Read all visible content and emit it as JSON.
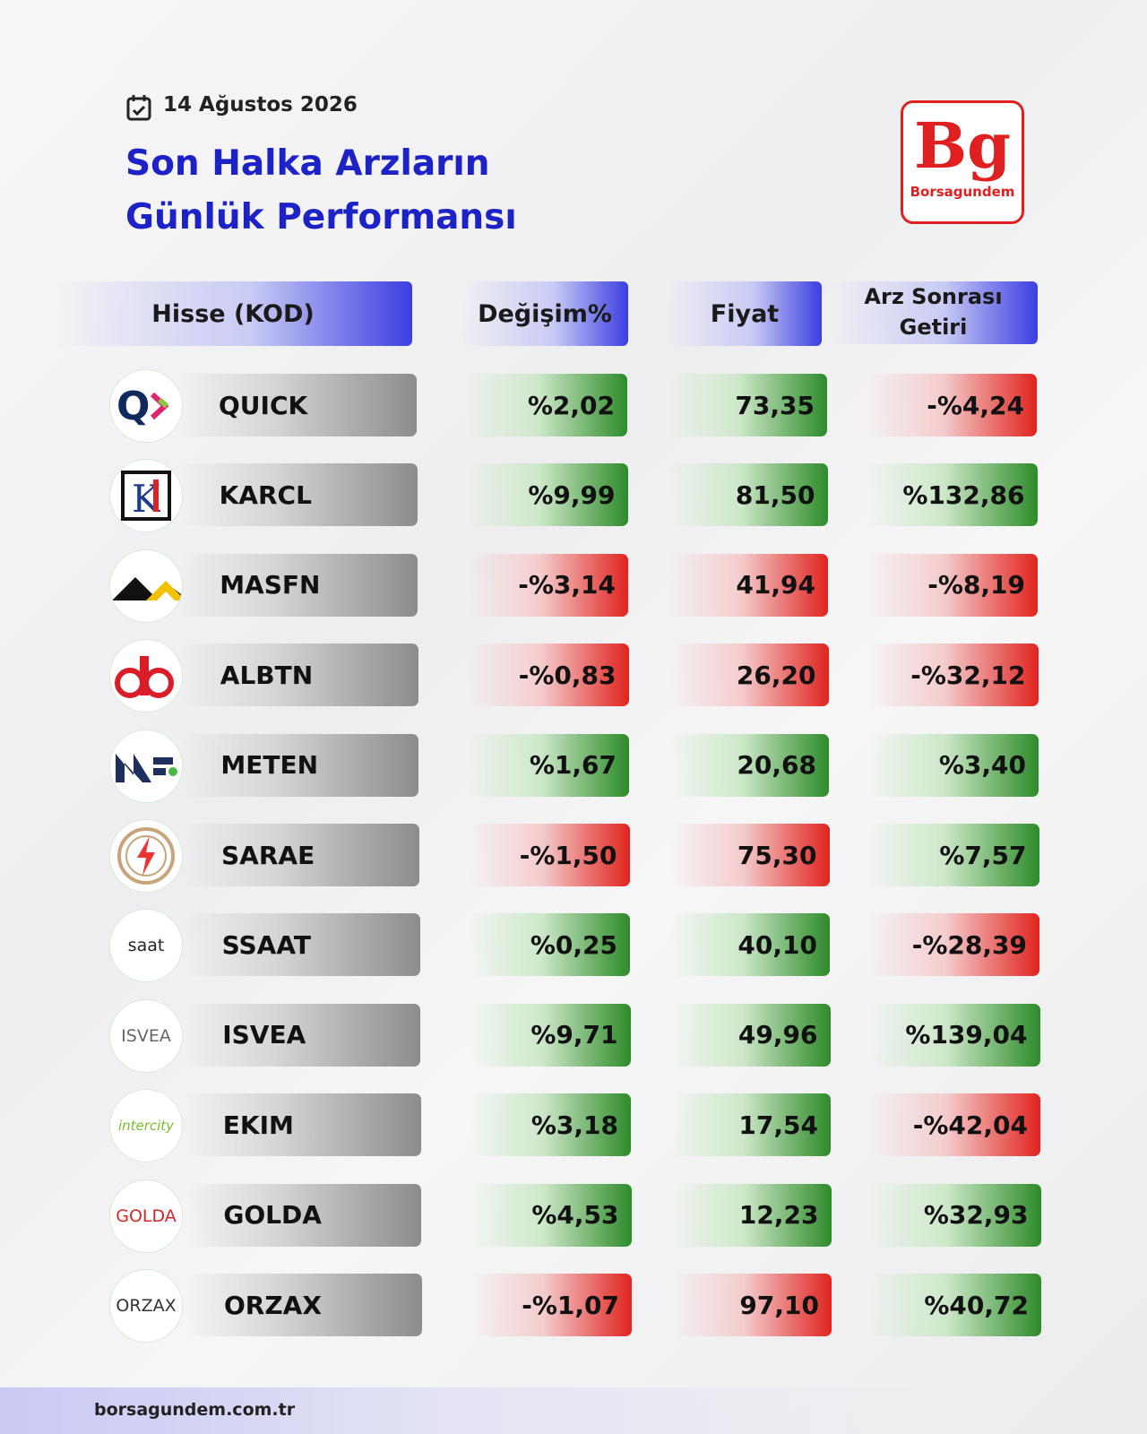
{
  "header": {
    "date": "14 Ağustos 2026",
    "title_line1": "Son Halka Arzların",
    "title_line2": "Günlük Performansı",
    "brand_mark": "Bg",
    "brand_name": "Borsagundem"
  },
  "table": {
    "headers": [
      "Hisse (KOD)",
      "Değişim%",
      "Fiyat",
      "Arz Sonrası Getiri"
    ],
    "rows": [
      {
        "code": "QUICK",
        "change": {
          "text": "%2,02",
          "tone": "up"
        },
        "price": {
          "text": "73,35",
          "tone": "up"
        },
        "return": {
          "text": "-%4,24",
          "tone": "down"
        }
      },
      {
        "code": "KARCL",
        "change": {
          "text": "%9,99",
          "tone": "up"
        },
        "price": {
          "text": "81,50",
          "tone": "up"
        },
        "return": {
          "text": "%132,86",
          "tone": "up"
        }
      },
      {
        "code": "MASFN",
        "change": {
          "text": "-%3,14",
          "tone": "down"
        },
        "price": {
          "text": "41,94",
          "tone": "down"
        },
        "return": {
          "text": "-%8,19",
          "tone": "down"
        }
      },
      {
        "code": "ALBTN",
        "change": {
          "text": "-%0,83",
          "tone": "down"
        },
        "price": {
          "text": "26,20",
          "tone": "down"
        },
        "return": {
          "text": "-%32,12",
          "tone": "down"
        }
      },
      {
        "code": "METEN",
        "change": {
          "text": "%1,67",
          "tone": "up"
        },
        "price": {
          "text": "20,68",
          "tone": "up"
        },
        "return": {
          "text": "%3,40",
          "tone": "up"
        }
      },
      {
        "code": "SARAE",
        "change": {
          "text": "-%1,50",
          "tone": "down"
        },
        "price": {
          "text": "75,30",
          "tone": "down"
        },
        "return": {
          "text": "%7,57",
          "tone": "up"
        }
      },
      {
        "code": "SSAAT",
        "logo_text": "saat",
        "change": {
          "text": "%0,25",
          "tone": "up"
        },
        "price": {
          "text": "40,10",
          "tone": "up"
        },
        "return": {
          "text": "-%28,39",
          "tone": "down"
        }
      },
      {
        "code": "ISVEA",
        "logo_text": "ISVEA",
        "change": {
          "text": "%9,71",
          "tone": "up"
        },
        "price": {
          "text": "49,96",
          "tone": "up"
        },
        "return": {
          "text": "%139,04",
          "tone": "up"
        }
      },
      {
        "code": "EKIM",
        "logo_text": "intercity",
        "change": {
          "text": "%3,18",
          "tone": "up"
        },
        "price": {
          "text": "17,54",
          "tone": "up"
        },
        "return": {
          "text": "-%42,04",
          "tone": "down"
        }
      },
      {
        "code": "GOLDA",
        "logo_text": "GOLDA",
        "change": {
          "text": "%4,53",
          "tone": "up"
        },
        "price": {
          "text": "12,23",
          "tone": "up"
        },
        "return": {
          "text": "%32,93",
          "tone": "up"
        }
      },
      {
        "code": "ORZAX",
        "logo_text": "ORZAX",
        "change": {
          "text": "-%1,07",
          "tone": "down"
        },
        "price": {
          "text": "97,10",
          "tone": "down"
        },
        "return": {
          "text": "%40,72",
          "tone": "up"
        }
      }
    ]
  },
  "footer": {
    "site": "borsagundem.com.tr"
  }
}
